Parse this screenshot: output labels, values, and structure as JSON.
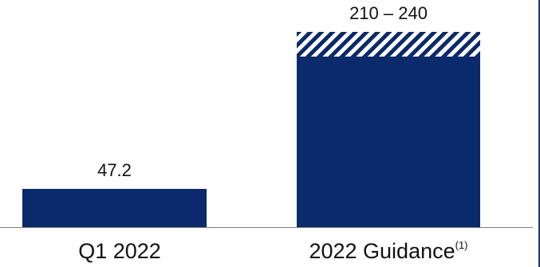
{
  "chart_data": {
    "type": "bar",
    "categories": [
      "Q1 2022",
      "2022 Guidance"
    ],
    "category_footnotes": [
      "",
      "(1)"
    ],
    "values": [
      47.2,
      240
    ],
    "ranges": [
      null,
      [
        210,
        240
      ]
    ],
    "data_labels": [
      "47.2",
      "210 – 240"
    ],
    "ylim": [
      0,
      260
    ],
    "colors": {
      "bar": "#0b2a6b",
      "hatch": "#ffffff"
    }
  }
}
